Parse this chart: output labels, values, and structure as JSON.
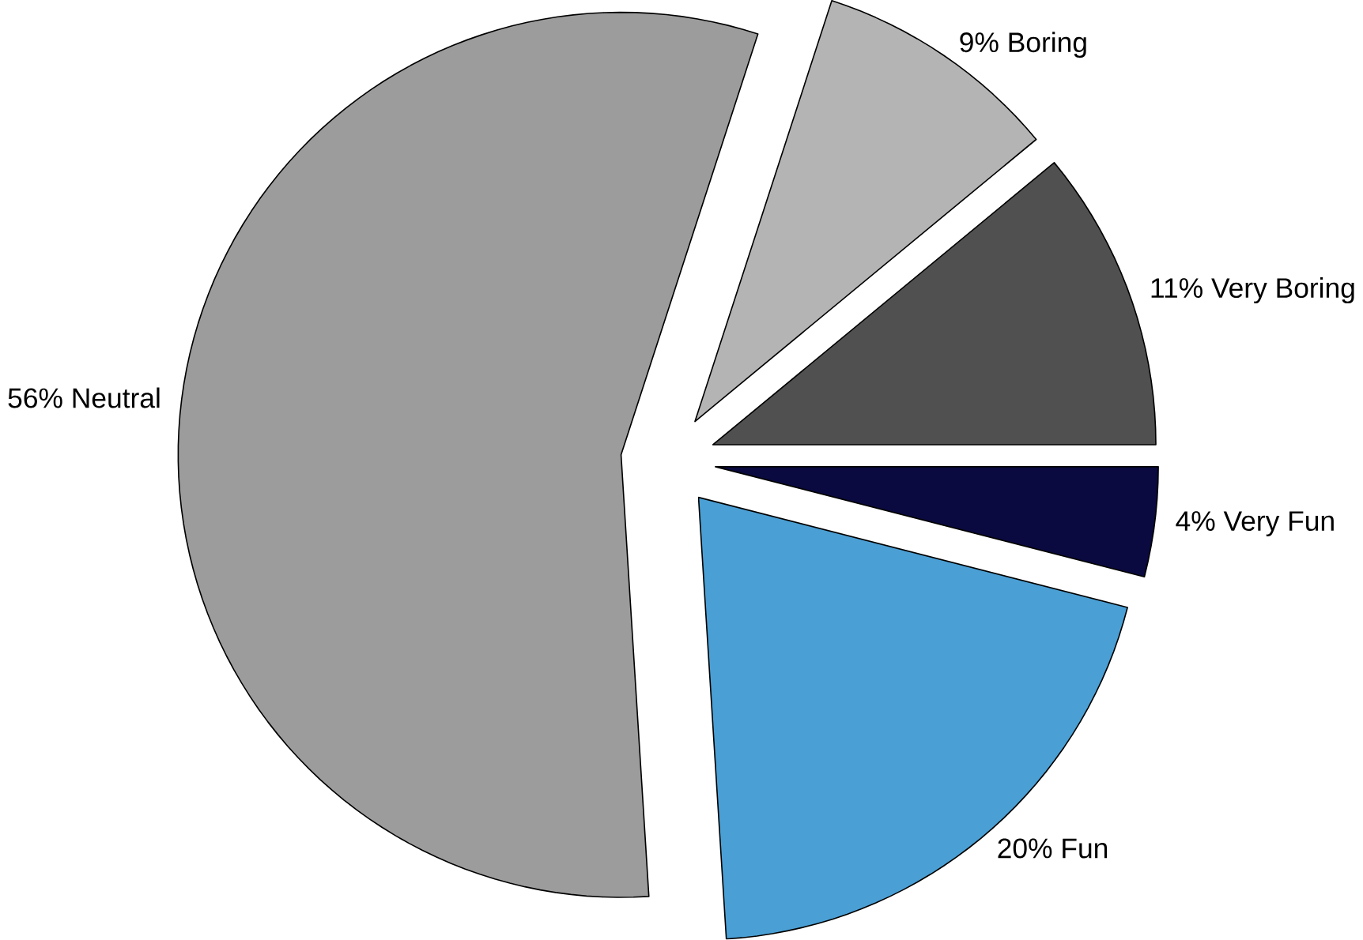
{
  "chart_data": {
    "type": "pie",
    "categories": [
      "Very Boring",
      "Boring",
      "Neutral",
      "Fun",
      "Very Fun"
    ],
    "values": [
      11,
      9,
      56,
      20,
      4
    ],
    "value_labels": [
      "11%",
      "9%",
      "56%",
      "20%",
      "4%"
    ],
    "colors": [
      "#505050",
      "#b4b4b4",
      "#9c9c9c",
      "#4a9fd4",
      "#0a0a40"
    ]
  }
}
